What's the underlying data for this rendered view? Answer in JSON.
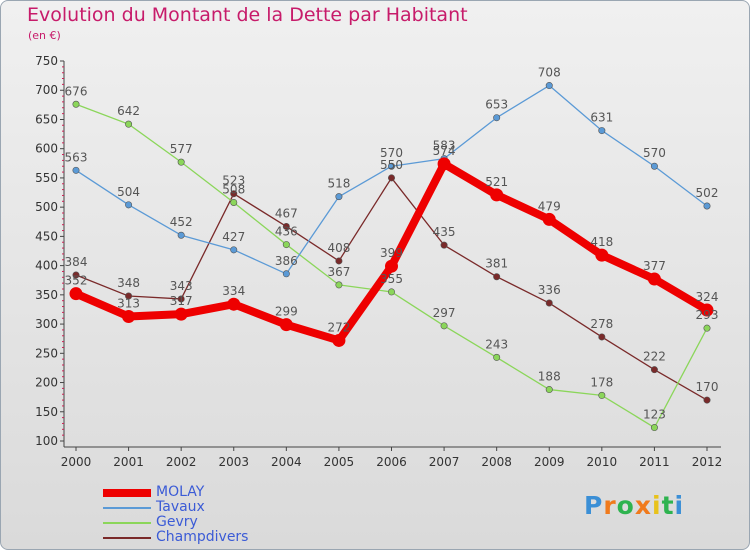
{
  "header": {
    "title": "Evolution du Montant de la Dette par Habitant",
    "subtitle": "(en €)"
  },
  "logo": {
    "text": "Proxiti",
    "colors": [
      "#3b8fd6",
      "#f07a1c",
      "#2eb34f",
      "#f07a1c",
      "#e8c21b",
      "#2eb34f",
      "#3b8fd6"
    ]
  },
  "chart_data": {
    "type": "line",
    "categories": [
      "2000",
      "2001",
      "2002",
      "2003",
      "2004",
      "2005",
      "2006",
      "2007",
      "2008",
      "2009",
      "2010",
      "2011",
      "2012"
    ],
    "ylim": [
      100,
      750
    ],
    "yticks": [
      100,
      150,
      200,
      250,
      300,
      350,
      400,
      450,
      500,
      550,
      600,
      650,
      700,
      750
    ],
    "grid": false,
    "legend_position": "bottom-left",
    "series": [
      {
        "name": "Champdivers",
        "color": "#7a2a2a",
        "values": [
          384,
          348,
          343,
          523,
          467,
          408,
          550,
          435,
          381,
          336,
          278,
          222,
          170
        ]
      },
      {
        "name": "Gevry",
        "color": "#8bd65a",
        "values": [
          676,
          642,
          577,
          508,
          436,
          367,
          355,
          297,
          243,
          188,
          178,
          123,
          293
        ]
      },
      {
        "name": "Tavaux",
        "color": "#5b9ad6",
        "values": [
          563,
          504,
          452,
          427,
          386,
          518,
          570,
          583,
          653,
          708,
          631,
          570,
          502
        ]
      },
      {
        "name": "MOLAY",
        "color": "#ee0000",
        "values": [
          352,
          313,
          317,
          334,
          299,
          272,
          399,
          574,
          521,
          479,
          418,
          377,
          324
        ]
      }
    ],
    "legend_order": [
      "MOLAY",
      "Tavaux",
      "Gevry",
      "Champdivers"
    ]
  }
}
